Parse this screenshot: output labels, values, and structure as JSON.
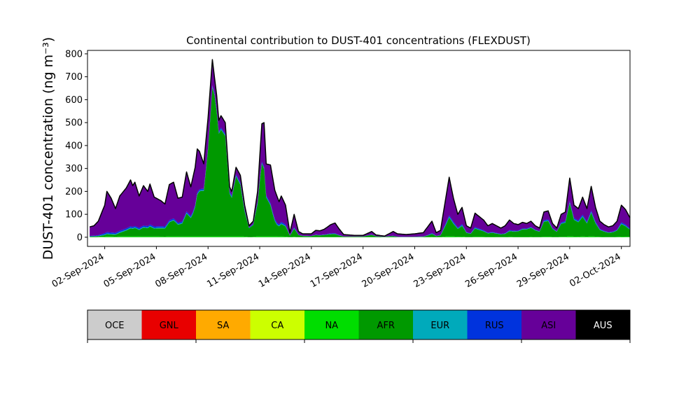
{
  "chart_data": {
    "type": "area",
    "stacked": true,
    "title": "Continental contribution to DUST-401 concentrations (FLEXDUST)",
    "ylabel": "DUST-401 concentration (ng m⁻³)",
    "xlabel": "",
    "x_start": "2024-09-01T00:00",
    "x_end": "2024-10-02T12:00",
    "x_step_hours": 3,
    "xlim": [
      "2024-09-01T00:00",
      "2024-10-02T12:00"
    ],
    "ylim": [
      -40,
      815
    ],
    "yticks": [
      0,
      100,
      200,
      300,
      400,
      500,
      600,
      700,
      800
    ],
    "xticks": [
      "02-Sep-2024",
      "05-Sep-2024",
      "08-Sep-2024",
      "11-Sep-2024",
      "14-Sep-2024",
      "17-Sep-2024",
      "20-Sep-2024",
      "23-Sep-2024",
      "26-Sep-2024",
      "29-Sep-2024",
      "02-Oct-2024"
    ],
    "grid": false,
    "total_outline_color": "#000000",
    "stack_order": [
      "OCE",
      "GNL",
      "SA",
      "CA",
      "NA",
      "AFR",
      "EUR",
      "RUS",
      "ASI",
      "AUS"
    ],
    "total_anchor_points": [
      [
        "2024-09-01T03:00",
        45
      ],
      [
        "2024-09-01T09:00",
        50
      ],
      [
        "2024-09-01T15:00",
        70
      ],
      [
        "2024-09-02T00:00",
        140
      ],
      [
        "2024-09-02T03:00",
        200
      ],
      [
        "2024-09-02T09:00",
        170
      ],
      [
        "2024-09-02T15:00",
        125
      ],
      [
        "2024-09-02T21:00",
        180
      ],
      [
        "2024-09-03T06:00",
        215
      ],
      [
        "2024-09-03T12:00",
        250
      ],
      [
        "2024-09-03T15:00",
        225
      ],
      [
        "2024-09-03T18:00",
        240
      ],
      [
        "2024-09-04T00:00",
        180
      ],
      [
        "2024-09-04T06:00",
        225
      ],
      [
        "2024-09-04T12:00",
        200
      ],
      [
        "2024-09-04T15:00",
        232
      ],
      [
        "2024-09-04T21:00",
        175
      ],
      [
        "2024-09-05T06:00",
        160
      ],
      [
        "2024-09-05T12:00",
        145
      ],
      [
        "2024-09-05T18:00",
        230
      ],
      [
        "2024-09-06T00:00",
        240
      ],
      [
        "2024-09-06T06:00",
        170
      ],
      [
        "2024-09-06T12:00",
        175
      ],
      [
        "2024-09-06T18:00",
        285
      ],
      [
        "2024-09-07T00:00",
        220
      ],
      [
        "2024-09-07T06:00",
        305
      ],
      [
        "2024-09-07T09:00",
        385
      ],
      [
        "2024-09-07T12:00",
        375
      ],
      [
        "2024-09-07T18:00",
        320
      ],
      [
        "2024-09-08T00:00",
        520
      ],
      [
        "2024-09-08T06:00",
        775
      ],
      [
        "2024-09-08T12:00",
        620
      ],
      [
        "2024-09-08T15:00",
        510
      ],
      [
        "2024-09-08T18:00",
        530
      ],
      [
        "2024-09-09T00:00",
        500
      ],
      [
        "2024-09-09T06:00",
        220
      ],
      [
        "2024-09-09T09:00",
        200
      ],
      [
        "2024-09-09T15:00",
        305
      ],
      [
        "2024-09-09T21:00",
        270
      ],
      [
        "2024-09-10T03:00",
        140
      ],
      [
        "2024-09-10T09:00",
        50
      ],
      [
        "2024-09-10T15:00",
        70
      ],
      [
        "2024-09-10T21:00",
        200
      ],
      [
        "2024-09-11T03:00",
        495
      ],
      [
        "2024-09-11T06:00",
        500
      ],
      [
        "2024-09-11T09:00",
        320
      ],
      [
        "2024-09-11T15:00",
        315
      ],
      [
        "2024-09-11T21:00",
        205
      ],
      [
        "2024-09-12T03:00",
        155
      ],
      [
        "2024-09-12T06:00",
        180
      ],
      [
        "2024-09-12T12:00",
        140
      ],
      [
        "2024-09-12T18:00",
        20
      ],
      [
        "2024-09-13T00:00",
        100
      ],
      [
        "2024-09-13T06:00",
        25
      ],
      [
        "2024-09-13T12:00",
        15
      ],
      [
        "2024-09-14T00:00",
        15
      ],
      [
        "2024-09-14T06:00",
        30
      ],
      [
        "2024-09-14T12:00",
        28
      ],
      [
        "2024-09-14T18:00",
        35
      ],
      [
        "2024-09-15T03:00",
        55
      ],
      [
        "2024-09-15T09:00",
        62
      ],
      [
        "2024-09-15T15:00",
        35
      ],
      [
        "2024-09-15T21:00",
        12
      ],
      [
        "2024-09-16T12:00",
        8
      ],
      [
        "2024-09-17T00:00",
        8
      ],
      [
        "2024-09-17T12:00",
        25
      ],
      [
        "2024-09-17T18:00",
        10
      ],
      [
        "2024-09-18T06:00",
        5
      ],
      [
        "2024-09-18T18:00",
        25
      ],
      [
        "2024-09-19T00:00",
        15
      ],
      [
        "2024-09-19T12:00",
        12
      ],
      [
        "2024-09-20T00:00",
        15
      ],
      [
        "2024-09-20T12:00",
        20
      ],
      [
        "2024-09-21T00:00",
        70
      ],
      [
        "2024-09-21T06:00",
        20
      ],
      [
        "2024-09-21T12:00",
        30
      ],
      [
        "2024-09-22T00:00",
        262
      ],
      [
        "2024-09-22T06:00",
        170
      ],
      [
        "2024-09-22T12:00",
        100
      ],
      [
        "2024-09-22T18:00",
        130
      ],
      [
        "2024-09-23T00:00",
        50
      ],
      [
        "2024-09-23T06:00",
        40
      ],
      [
        "2024-09-23T12:00",
        105
      ],
      [
        "2024-09-23T18:00",
        90
      ],
      [
        "2024-09-24T00:00",
        75
      ],
      [
        "2024-09-24T06:00",
        50
      ],
      [
        "2024-09-24T12:00",
        60
      ],
      [
        "2024-09-24T18:00",
        50
      ],
      [
        "2024-09-25T00:00",
        40
      ],
      [
        "2024-09-25T06:00",
        50
      ],
      [
        "2024-09-25T12:00",
        75
      ],
      [
        "2024-09-25T18:00",
        60
      ],
      [
        "2024-09-26T00:00",
        55
      ],
      [
        "2024-09-26T06:00",
        65
      ],
      [
        "2024-09-26T12:00",
        60
      ],
      [
        "2024-09-26T18:00",
        70
      ],
      [
        "2024-09-27T00:00",
        50
      ],
      [
        "2024-09-27T06:00",
        40
      ],
      [
        "2024-09-27T12:00",
        110
      ],
      [
        "2024-09-27T18:00",
        115
      ],
      [
        "2024-09-28T00:00",
        60
      ],
      [
        "2024-09-28T06:00",
        40
      ],
      [
        "2024-09-28T12:00",
        100
      ],
      [
        "2024-09-28T18:00",
        110
      ],
      [
        "2024-09-29T00:00",
        258
      ],
      [
        "2024-09-29T06:00",
        140
      ],
      [
        "2024-09-29T12:00",
        125
      ],
      [
        "2024-09-29T18:00",
        175
      ],
      [
        "2024-09-30T00:00",
        125
      ],
      [
        "2024-09-30T06:00",
        222
      ],
      [
        "2024-09-30T12:00",
        130
      ],
      [
        "2024-09-30T18:00",
        70
      ],
      [
        "2024-10-01T00:00",
        55
      ],
      [
        "2024-10-01T06:00",
        45
      ],
      [
        "2024-10-01T12:00",
        50
      ],
      [
        "2024-10-01T18:00",
        70
      ],
      [
        "2024-10-02T00:00",
        140
      ],
      [
        "2024-10-02T06:00",
        120
      ],
      [
        "2024-10-02T12:00",
        85
      ]
    ],
    "asi_share_note_free_values": [
      0.95,
      0.95,
      0.85,
      0.8,
      0.7,
      0.6,
      0.1,
      0.1,
      0.2,
      0.7,
      0.6,
      0.7,
      0.8,
      0.55,
      0.6,
      0.95,
      0.9,
      0.7,
      0.6,
      0.65,
      0.7,
      0.4,
      0.35,
      0.4,
      0.5,
      0.55,
      0.6
    ],
    "series": [
      {
        "name": "OCE",
        "color": "#cccccc",
        "values": []
      },
      {
        "name": "GNL",
        "color": "#e80000",
        "values": []
      },
      {
        "name": "SA",
        "color": "#ffaa00",
        "values": []
      },
      {
        "name": "CA",
        "color": "#ccff00",
        "values": []
      },
      {
        "name": "NA",
        "color": "#00dd00",
        "values": []
      },
      {
        "name": "AFR",
        "color": "#009900",
        "values": []
      },
      {
        "name": "EUR",
        "color": "#00aabb",
        "values": []
      },
      {
        "name": "RUS",
        "color": "#0033dd",
        "values": []
      },
      {
        "name": "ASI",
        "color": "#660099",
        "values": []
      },
      {
        "name": "AUS",
        "color": "#000000",
        "values": []
      }
    ]
  },
  "legend": {
    "items": [
      {
        "label": "OCE",
        "color": "#cccccc",
        "text_color": "#000000"
      },
      {
        "label": "GNL",
        "color": "#e80000",
        "text_color": "#000000"
      },
      {
        "label": "SA",
        "color": "#ffaa00",
        "text_color": "#000000"
      },
      {
        "label": "CA",
        "color": "#ccff00",
        "text_color": "#000000"
      },
      {
        "label": "NA",
        "color": "#00dd00",
        "text_color": "#000000"
      },
      {
        "label": "AFR",
        "color": "#009900",
        "text_color": "#000000"
      },
      {
        "label": "EUR",
        "color": "#00aabb",
        "text_color": "#000000"
      },
      {
        "label": "RUS",
        "color": "#0033dd",
        "text_color": "#000000"
      },
      {
        "label": "ASI",
        "color": "#660099",
        "text_color": "#000000"
      },
      {
        "label": "AUS",
        "color": "#000000",
        "text_color": "#ffffff"
      }
    ]
  }
}
